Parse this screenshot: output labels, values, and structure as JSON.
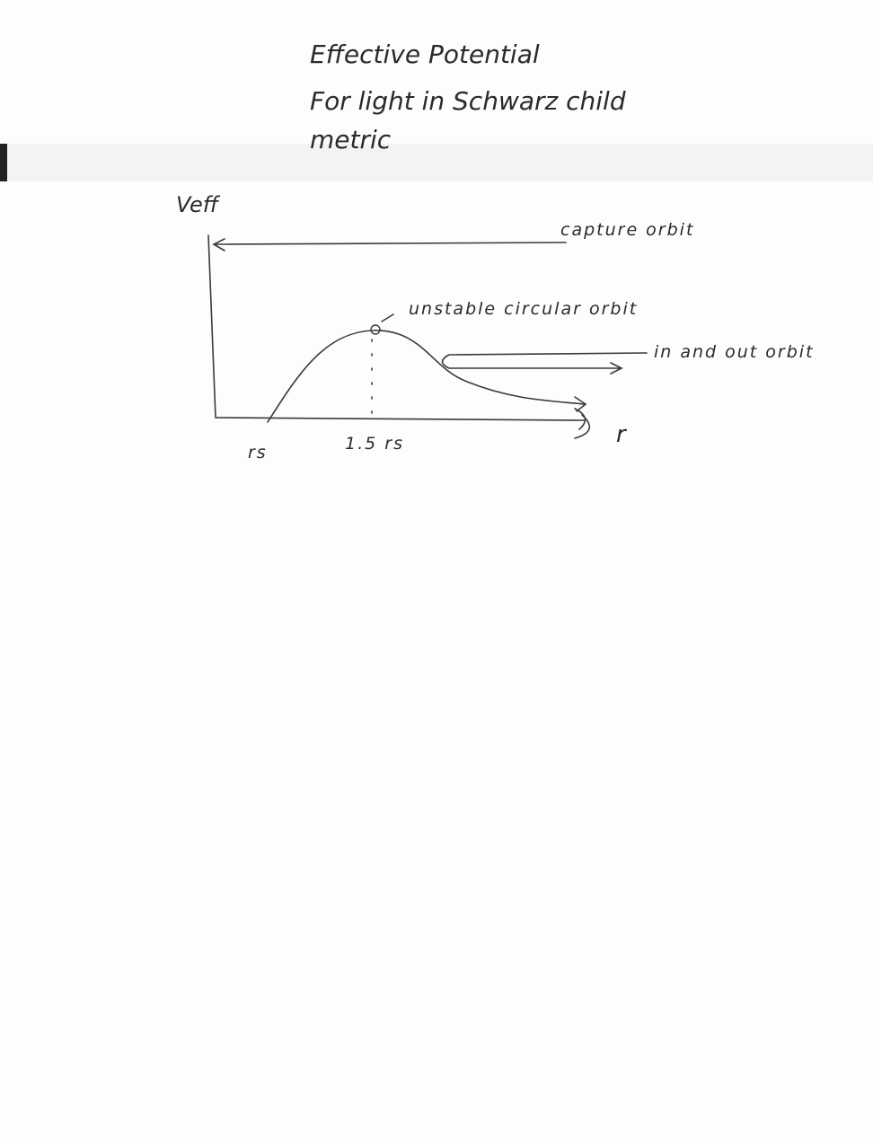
{
  "title": {
    "lines": [
      "Effective Potential",
      "For light in Schwarz child",
      "metric"
    ]
  },
  "axes": {
    "y_label": "Veff",
    "x_label": "r"
  },
  "ticks": {
    "rs": "rs",
    "peak": "1.5 rs"
  },
  "annotations": {
    "capture": "capture orbit",
    "unstable": "unstable circular orbit",
    "in_out": "in and out orbit"
  }
}
